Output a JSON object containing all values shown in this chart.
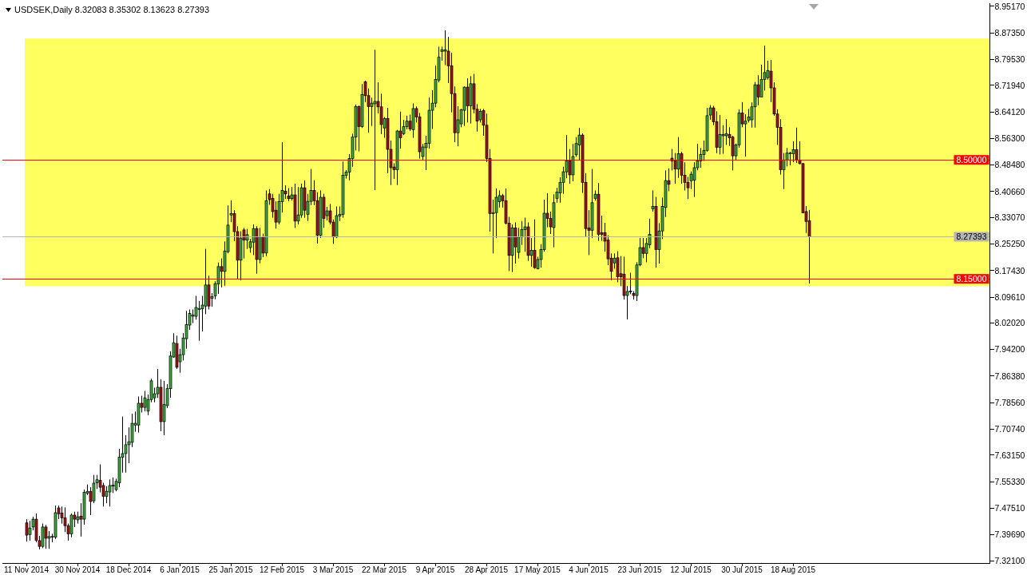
{
  "chart_data": {
    "type": "candlestick",
    "title": "USDSEK,Daily 8.32083 8.35302 8.13623 8.27393",
    "categories": [
      "11 Nov 2014",
      null,
      null,
      null,
      null,
      null,
      null,
      null,
      null,
      null,
      null,
      null,
      null,
      null,
      null,
      null,
      "30 Nov 2014",
      null,
      null,
      null,
      null,
      null,
      null,
      null,
      null,
      null,
      null,
      null,
      null,
      null,
      null,
      null,
      "18 Dec 2014",
      null,
      null,
      null,
      null,
      null,
      null,
      null,
      null,
      null,
      null,
      null,
      null,
      null,
      null,
      null,
      "6 Jan 2015",
      null,
      null,
      null,
      null,
      null,
      null,
      null,
      null,
      null,
      null,
      null,
      null,
      null,
      null,
      null,
      "25 Jan 2015",
      null,
      null,
      null,
      null,
      null,
      null,
      null,
      null,
      null,
      null,
      null,
      null,
      null,
      null,
      null,
      "12 Feb 2015",
      null,
      null,
      null,
      null,
      null,
      null,
      null,
      null,
      null,
      null,
      null,
      null,
      null,
      null,
      null,
      "3 Mar 2015",
      null,
      null,
      null,
      null,
      null,
      null,
      null,
      null,
      null,
      null,
      null,
      null,
      null,
      null,
      null,
      "22 Mar 2015",
      null,
      null,
      null,
      null,
      null,
      null,
      null,
      null,
      null,
      null,
      null,
      null,
      null,
      null,
      null,
      "9 Apr 2015",
      null,
      null,
      null,
      null,
      null,
      null,
      null,
      null,
      null,
      null,
      null,
      null,
      null,
      null,
      null,
      "28 Apr 2015",
      null,
      null,
      null,
      null,
      null,
      null,
      null,
      null,
      null,
      null,
      null,
      null,
      null,
      null,
      null,
      "17 May 2015",
      null,
      null,
      null,
      null,
      null,
      null,
      null,
      null,
      null,
      null,
      null,
      null,
      null,
      null,
      null,
      "4 Jun 2015",
      null,
      null,
      null,
      null,
      null,
      null,
      null,
      null,
      null,
      null,
      null,
      null,
      null,
      null,
      null,
      "23 Jun 2015",
      null,
      null,
      null,
      null,
      null,
      null,
      null,
      null,
      null,
      null,
      null,
      null,
      null,
      null,
      null,
      "12 Jul 2015",
      null,
      null,
      null,
      null,
      null,
      null,
      null,
      null,
      null,
      null,
      null,
      null,
      null,
      null,
      null,
      "30 Jul 2015",
      null,
      null,
      null,
      null,
      null,
      null,
      null,
      null,
      null,
      null,
      null,
      null,
      null,
      null,
      null,
      "18 Aug 2015",
      null,
      null,
      null,
      null,
      null,
      null,
      null,
      null,
      null,
      null,
      null,
      null,
      null,
      null,
      null,
      null,
      null,
      null,
      null,
      null,
      null,
      null,
      null,
      null,
      null,
      null,
      null,
      null,
      null,
      null,
      null,
      null,
      null,
      null,
      null,
      null,
      null,
      null,
      null,
      null,
      null,
      null,
      null,
      null,
      null,
      null,
      null,
      null,
      null,
      null,
      null,
      null,
      null,
      null,
      null,
      null,
      null,
      null,
      null,
      null,
      null
    ],
    "ohlc": [
      [
        7.432,
        7.443,
        7.377,
        7.396
      ],
      [
        7.398,
        7.438,
        7.38,
        7.417
      ],
      [
        7.42,
        7.45,
        7.41,
        7.443
      ],
      [
        7.443,
        7.46,
        7.375,
        7.381
      ],
      [
        7.38,
        7.394,
        7.354,
        7.363
      ],
      [
        7.363,
        7.43,
        7.358,
        7.42
      ],
      [
        7.42,
        7.426,
        7.356,
        7.387
      ],
      [
        7.387,
        7.408,
        7.356,
        7.392
      ],
      [
        7.39,
        7.4,
        7.375,
        7.392
      ],
      [
        7.39,
        7.483,
        7.385,
        7.462
      ],
      [
        7.476,
        7.483,
        7.443,
        7.459
      ],
      [
        7.461,
        7.48,
        7.43,
        7.447
      ],
      [
        7.447,
        7.478,
        7.405,
        7.424
      ],
      [
        7.424,
        7.43,
        7.38,
        7.4
      ],
      [
        7.4,
        7.46,
        7.39,
        7.455
      ],
      [
        7.455,
        7.465,
        7.42,
        7.443
      ],
      [
        7.441,
        7.465,
        7.43,
        7.45
      ],
      [
        7.452,
        7.49,
        7.392,
        7.443
      ],
      [
        7.443,
        7.53,
        7.427,
        7.522
      ],
      [
        7.52,
        7.545,
        7.514,
        7.525
      ],
      [
        7.525,
        7.537,
        7.455,
        7.495
      ],
      [
        7.497,
        7.573,
        7.49,
        7.549
      ],
      [
        7.55,
        7.573,
        7.532,
        7.559
      ],
      [
        7.557,
        7.604,
        7.522,
        7.537
      ],
      [
        7.542,
        7.55,
        7.48,
        7.51
      ],
      [
        7.51,
        7.54,
        7.49,
        7.525
      ],
      [
        7.523,
        7.56,
        7.48,
        7.542
      ],
      [
        7.54,
        7.566,
        7.52,
        7.543
      ],
      [
        7.53,
        7.562,
        7.525,
        7.554
      ],
      [
        7.55,
        7.65,
        7.537,
        7.625
      ],
      [
        7.625,
        7.745,
        7.58,
        7.636
      ],
      [
        7.636,
        7.69,
        7.58,
        7.662
      ],
      [
        7.662,
        7.713,
        7.608,
        7.671
      ],
      [
        7.669,
        7.753,
        7.655,
        7.725
      ],
      [
        7.72,
        7.76,
        7.7,
        7.725
      ],
      [
        7.72,
        7.804,
        7.698,
        7.784
      ],
      [
        7.784,
        7.806,
        7.757,
        7.772
      ],
      [
        7.772,
        7.82,
        7.76,
        7.8
      ],
      [
        7.761,
        7.81,
        7.749,
        7.795
      ],
      [
        7.795,
        7.856,
        7.787,
        7.85
      ],
      [
        7.8,
        7.83,
        7.787,
        7.812
      ],
      [
        7.812,
        7.885,
        7.8,
        7.831
      ],
      [
        7.831,
        7.854,
        7.702,
        7.73
      ],
      [
        7.73,
        7.85,
        7.69,
        7.78
      ],
      [
        7.777,
        7.84,
        7.77,
        7.827
      ],
      [
        7.827,
        7.937,
        7.8,
        7.923
      ],
      [
        7.92,
        7.99,
        7.918,
        7.962
      ],
      [
        7.96,
        7.983,
        7.885,
        7.89
      ],
      [
        7.906,
        7.944,
        7.874,
        7.927
      ],
      [
        7.927,
        7.99,
        7.91,
        7.976
      ],
      [
        7.974,
        8.056,
        7.944,
        8.015
      ],
      [
        8.014,
        8.06,
        8.0,
        8.048
      ],
      [
        8.04,
        8.06,
        8.02,
        8.044
      ],
      [
        8.04,
        8.1,
        8.03,
        8.066
      ],
      [
        8.06,
        8.085,
        7.968,
        8.063
      ],
      [
        8.062,
        8.1,
        7.995,
        8.073
      ],
      [
        8.07,
        8.238,
        8.046,
        8.132
      ],
      [
        8.132,
        8.159,
        8.06,
        8.07
      ],
      [
        8.093,
        8.108,
        8.068,
        8.098
      ],
      [
        8.1,
        8.143,
        8.09,
        8.136
      ],
      [
        8.135,
        8.198,
        8.106,
        8.186
      ],
      [
        8.186,
        8.21,
        8.125,
        8.172
      ],
      [
        8.172,
        8.26,
        8.13,
        8.232
      ],
      [
        8.23,
        8.366,
        8.225,
        8.308
      ],
      [
        8.338,
        8.381,
        8.317,
        8.342
      ],
      [
        8.342,
        8.352,
        8.261,
        8.289
      ],
      [
        8.289,
        8.305,
        8.148,
        8.205
      ],
      [
        8.205,
        8.29,
        8.146,
        8.27
      ],
      [
        8.294,
        8.3,
        8.21,
        8.264
      ],
      [
        8.264,
        8.297,
        8.238,
        8.28
      ],
      [
        8.242,
        8.268,
        8.227,
        8.259
      ],
      [
        8.258,
        8.31,
        8.22,
        8.298
      ],
      [
        8.298,
        8.305,
        8.165,
        8.207
      ],
      [
        8.207,
        8.3,
        8.196,
        8.274
      ],
      [
        8.274,
        8.283,
        8.214,
        8.226
      ],
      [
        8.226,
        8.41,
        8.217,
        8.38
      ],
      [
        8.4,
        8.414,
        8.368,
        8.383
      ],
      [
        8.387,
        8.4,
        8.33,
        8.348
      ],
      [
        8.352,
        8.378,
        8.298,
        8.317
      ],
      [
        8.317,
        8.4,
        8.31,
        8.377
      ],
      [
        8.377,
        8.552,
        8.345,
        8.41
      ],
      [
        8.408,
        8.425,
        8.385,
        8.4
      ],
      [
        8.394,
        8.417,
        8.378,
        8.386
      ],
      [
        8.386,
        8.42,
        8.38,
        8.397
      ],
      [
        8.397,
        8.43,
        8.3,
        8.32
      ],
      [
        8.32,
        8.42,
        8.31,
        8.338
      ],
      [
        8.338,
        8.43,
        8.33,
        8.418
      ],
      [
        8.418,
        8.44,
        8.33,
        8.352
      ],
      [
        8.34,
        8.4,
        8.32,
        8.378
      ],
      [
        8.378,
        8.473,
        8.367,
        8.41
      ],
      [
        8.41,
        8.44,
        8.367,
        8.38
      ],
      [
        8.38,
        8.405,
        8.254,
        8.278
      ],
      [
        8.278,
        8.41,
        8.27,
        8.39
      ],
      [
        8.39,
        8.4,
        8.3,
        8.328
      ],
      [
        8.336,
        8.362,
        8.322,
        8.35
      ],
      [
        8.35,
        8.37,
        8.31,
        8.317
      ],
      [
        8.317,
        8.325,
        8.253,
        8.273
      ],
      [
        8.273,
        8.363,
        8.27,
        8.336
      ],
      [
        8.335,
        8.363,
        8.32,
        8.34
      ],
      [
        8.34,
        8.495,
        8.33,
        8.455
      ],
      [
        8.455,
        8.47,
        8.445,
        8.464
      ],
      [
        8.464,
        8.517,
        8.44,
        8.504
      ],
      [
        8.504,
        8.577,
        8.48,
        8.567
      ],
      [
        8.567,
        8.663,
        8.528,
        8.657
      ],
      [
        8.657,
        8.66,
        8.525,
        8.598
      ],
      [
        8.598,
        8.723,
        8.594,
        8.692
      ],
      [
        8.73,
        8.733,
        8.67,
        8.689
      ],
      [
        8.689,
        8.71,
        8.58,
        8.657
      ],
      [
        8.657,
        8.683,
        8.6,
        8.667
      ],
      [
        8.665,
        8.824,
        8.411,
        8.672
      ],
      [
        8.672,
        8.728,
        8.637,
        8.656
      ],
      [
        8.656,
        8.695,
        8.576,
        8.604
      ],
      [
        8.594,
        8.626,
        8.565,
        8.622
      ],
      [
        8.622,
        8.653,
        8.461,
        8.531
      ],
      [
        8.531,
        8.557,
        8.426,
        8.477
      ],
      [
        8.479,
        8.49,
        8.444,
        8.471
      ],
      [
        8.471,
        8.588,
        8.426,
        8.585
      ],
      [
        8.585,
        8.642,
        8.533,
        8.565
      ],
      [
        8.577,
        8.618,
        8.573,
        8.598
      ],
      [
        8.598,
        8.63,
        8.59,
        8.614
      ],
      [
        8.614,
        8.633,
        8.585,
        8.591
      ],
      [
        8.589,
        8.666,
        8.565,
        8.651
      ],
      [
        8.651,
        8.657,
        8.61,
        8.626
      ],
      [
        8.626,
        8.638,
        8.504,
        8.524
      ],
      [
        8.51,
        8.547,
        8.5,
        8.538
      ],
      [
        8.536,
        8.571,
        8.47,
        8.549
      ],
      [
        8.549,
        8.683,
        8.533,
        8.646
      ],
      [
        8.646,
        8.705,
        8.591,
        8.667
      ],
      [
        8.667,
        8.777,
        8.655,
        8.737
      ],
      [
        8.735,
        8.833,
        8.728,
        8.802
      ],
      [
        8.819,
        8.833,
        8.792,
        8.824
      ],
      [
        8.82,
        8.881,
        8.779,
        8.824
      ],
      [
        8.82,
        8.862,
        8.726,
        8.777
      ],
      [
        8.777,
        8.815,
        8.64,
        8.695
      ],
      [
        8.695,
        8.716,
        8.552,
        8.58
      ],
      [
        8.58,
        8.658,
        8.54,
        8.618
      ],
      [
        8.606,
        8.65,
        8.596,
        8.648
      ],
      [
        8.646,
        8.716,
        8.6,
        8.714
      ],
      [
        8.714,
        8.74,
        8.61,
        8.659
      ],
      [
        8.659,
        8.746,
        8.607,
        8.724
      ],
      [
        8.724,
        8.753,
        8.637,
        8.649
      ],
      [
        8.649,
        8.664,
        8.583,
        8.614
      ],
      [
        8.618,
        8.65,
        8.61,
        8.643
      ],
      [
        8.645,
        8.65,
        8.571,
        8.602
      ],
      [
        8.602,
        8.636,
        8.494,
        8.504
      ],
      [
        8.504,
        8.532,
        8.289,
        8.342
      ],
      [
        8.342,
        8.383,
        8.225,
        8.345
      ],
      [
        8.345,
        8.416,
        8.27,
        8.39
      ],
      [
        8.377,
        8.41,
        8.36,
        8.395
      ],
      [
        8.395,
        8.4,
        8.36,
        8.38
      ],
      [
        8.38,
        8.416,
        8.31,
        8.314
      ],
      [
        8.314,
        8.332,
        8.173,
        8.219
      ],
      [
        8.219,
        8.31,
        8.17,
        8.3
      ],
      [
        8.3,
        8.316,
        8.195,
        8.244
      ],
      [
        8.228,
        8.3,
        8.21,
        8.273
      ],
      [
        8.273,
        8.32,
        8.25,
        8.295
      ],
      [
        8.295,
        8.33,
        8.23,
        8.303
      ],
      [
        8.303,
        8.316,
        8.203,
        8.219
      ],
      [
        8.219,
        8.27,
        8.186,
        8.234
      ],
      [
        8.234,
        8.325,
        8.18,
        8.183
      ],
      [
        8.18,
        8.215,
        8.178,
        8.207
      ],
      [
        8.207,
        8.252,
        8.183,
        8.236
      ],
      [
        8.236,
        8.383,
        8.23,
        8.343
      ],
      [
        8.343,
        8.402,
        8.302,
        8.328
      ],
      [
        8.328,
        8.348,
        8.282,
        8.303
      ],
      [
        8.301,
        8.399,
        8.243,
        8.374
      ],
      [
        8.387,
        8.418,
        8.374,
        8.405
      ],
      [
        8.403,
        8.449,
        8.374,
        8.434
      ],
      [
        8.434,
        8.48,
        8.4,
        8.465
      ],
      [
        8.465,
        8.573,
        8.446,
        8.497
      ],
      [
        8.497,
        8.532,
        8.43,
        8.456
      ],
      [
        8.456,
        8.547,
        8.437,
        8.51
      ],
      [
        8.515,
        8.567,
        8.509,
        8.548
      ],
      [
        8.544,
        8.594,
        8.5,
        8.573
      ],
      [
        8.573,
        8.578,
        8.403,
        8.434
      ],
      [
        8.434,
        8.461,
        8.273,
        8.298
      ],
      [
        8.3,
        8.352,
        8.22,
        8.293
      ],
      [
        8.293,
        8.473,
        8.27,
        8.374
      ],
      [
        8.387,
        8.41,
        8.38,
        8.399
      ],
      [
        8.399,
        8.432,
        8.262,
        8.281
      ],
      [
        8.286,
        8.336,
        8.262,
        8.281
      ],
      [
        8.286,
        8.315,
        8.23,
        8.261
      ],
      [
        8.264,
        8.278,
        8.19,
        8.209
      ],
      [
        8.211,
        8.225,
        8.146,
        8.172
      ],
      [
        8.197,
        8.225,
        8.18,
        8.211
      ],
      [
        8.212,
        8.231,
        8.14,
        8.156
      ],
      [
        8.165,
        8.217,
        8.129,
        8.156
      ],
      [
        8.164,
        8.215,
        8.089,
        8.101
      ],
      [
        8.101,
        8.129,
        8.031,
        8.113
      ],
      [
        8.112,
        8.168,
        8.105,
        8.114
      ],
      [
        8.107,
        8.114,
        8.089,
        8.101
      ],
      [
        8.101,
        8.199,
        8.085,
        8.191
      ],
      [
        8.191,
        8.27,
        8.187,
        8.242
      ],
      [
        8.242,
        8.27,
        8.211,
        8.225
      ],
      [
        8.225,
        8.27,
        8.199,
        8.254
      ],
      [
        8.25,
        8.327,
        8.24,
        8.281
      ],
      [
        8.356,
        8.41,
        8.348,
        8.363
      ],
      [
        8.363,
        8.391,
        8.183,
        8.236
      ],
      [
        8.236,
        8.314,
        8.195,
        8.291
      ],
      [
        8.291,
        8.389,
        8.267,
        8.363
      ],
      [
        8.36,
        8.469,
        8.332,
        8.439
      ],
      [
        8.439,
        8.475,
        8.408,
        8.428
      ],
      [
        8.505,
        8.532,
        8.469,
        8.497
      ],
      [
        8.497,
        8.52,
        8.43,
        8.473
      ],
      [
        8.473,
        8.567,
        8.447,
        8.518
      ],
      [
        8.518,
        8.524,
        8.43,
        8.455
      ],
      [
        8.455,
        8.493,
        8.41,
        8.434
      ],
      [
        8.434,
        8.45,
        8.385,
        8.418
      ],
      [
        8.438,
        8.466,
        8.414,
        8.458
      ],
      [
        8.44,
        8.493,
        8.391,
        8.477
      ],
      [
        8.477,
        8.547,
        8.469,
        8.497
      ],
      [
        8.497,
        8.535,
        8.477,
        8.516
      ],
      [
        8.516,
        8.557,
        8.497,
        8.528
      ],
      [
        8.528,
        8.653,
        8.524,
        8.63
      ],
      [
        8.632,
        8.661,
        8.618,
        8.653
      ],
      [
        8.653,
        8.659,
        8.602,
        8.612
      ],
      [
        8.612,
        8.643,
        8.52,
        8.537
      ],
      [
        8.537,
        8.632,
        8.516,
        8.575
      ],
      [
        8.571,
        8.602,
        8.518,
        8.575
      ],
      [
        8.571,
        8.62,
        8.544,
        8.577
      ],
      [
        8.575,
        8.596,
        8.541,
        8.565
      ],
      [
        8.567,
        8.571,
        8.469,
        8.512
      ],
      [
        8.512,
        8.548,
        8.5,
        8.544
      ],
      [
        8.544,
        8.648,
        8.536,
        8.638
      ],
      [
        8.638,
        8.67,
        8.596,
        8.606
      ],
      [
        8.606,
        8.634,
        8.51,
        8.614
      ],
      [
        8.617,
        8.65,
        8.61,
        8.626
      ],
      [
        8.618,
        8.669,
        8.595,
        8.656
      ],
      [
        8.656,
        8.729,
        8.595,
        8.721
      ],
      [
        8.721,
        8.749,
        8.661,
        8.685
      ],
      [
        8.685,
        8.78,
        8.685,
        8.737
      ],
      [
        8.737,
        8.836,
        8.704,
        8.757
      ],
      [
        8.742,
        8.792,
        8.736,
        8.763
      ],
      [
        8.761,
        8.794,
        8.67,
        8.712
      ],
      [
        8.712,
        8.728,
        8.63,
        8.635
      ],
      [
        8.635,
        8.649,
        8.544,
        8.596
      ],
      [
        8.596,
        8.62,
        8.457,
        8.471
      ],
      [
        8.471,
        8.52,
        8.414,
        8.5
      ],
      [
        8.5,
        8.535,
        8.481,
        8.52
      ],
      [
        8.518,
        8.524,
        8.484,
        8.52
      ],
      [
        8.518,
        8.555,
        8.493,
        8.53
      ],
      [
        8.53,
        8.595,
        8.491,
        8.5
      ],
      [
        8.5,
        8.555,
        8.487,
        8.489
      ],
      [
        8.489,
        8.491,
        8.343,
        8.344
      ],
      [
        8.348,
        8.364,
        8.285,
        8.319
      ],
      [
        8.32083,
        8.35302,
        8.13623,
        8.27393
      ],
      null,
      null,
      null,
      null,
      null,
      null,
      null,
      null,
      null,
      null,
      null,
      null,
      null,
      null,
      null,
      null,
      null,
      null,
      null,
      null,
      null,
      null,
      null,
      null,
      null,
      null,
      null,
      null,
      null,
      null,
      null,
      null,
      null,
      null,
      null,
      null,
      null,
      null,
      null,
      null,
      null,
      null,
      null,
      null,
      null,
      null,
      null,
      null,
      null,
      null,
      null,
      null,
      null,
      null,
      null,
      null
    ],
    "colors": [
      "#a01414",
      "#3caa3c",
      "#3caa3c",
      "#a01414",
      "#a01414",
      "#3caa3c",
      "#a01414",
      "#3caa3c",
      "#3caa3c",
      "#3caa3c",
      "#a01414",
      "#a01414",
      "#a01414",
      "#a01414",
      "#3caa3c",
      "#a01414",
      "#3caa3c",
      "#a01414",
      "#3caa3c",
      "#3caa3c",
      "#a01414",
      "#3caa3c",
      "#3caa3c",
      "#a01414",
      "#a01414",
      "#3caa3c",
      "#3caa3c",
      "#3caa3c",
      "#3caa3c",
      "#3caa3c",
      "#3caa3c",
      "#3caa3c",
      "#3caa3c",
      "#3caa3c",
      "#3caa3c",
      "#3caa3c",
      "#a01414",
      "#3caa3c",
      "#3caa3c",
      "#3caa3c",
      "#3caa3c",
      "#3caa3c",
      "#a01414",
      "#3caa3c",
      "#3caa3c",
      "#3caa3c",
      "#3caa3c",
      "#a01414",
      "#3caa3c",
      "#3caa3c",
      "#3caa3c",
      "#3caa3c",
      "#3caa3c",
      "#3caa3c",
      "#3caa3c",
      "#3caa3c",
      "#3caa3c",
      "#a01414",
      "#3caa3c",
      "#3caa3c",
      "#3caa3c",
      "#a01414",
      "#3caa3c",
      "#3caa3c",
      "#3caa3c",
      "#a01414",
      "#a01414",
      "#3caa3c",
      "#a01414",
      "#3caa3c",
      "#3caa3c",
      "#3caa3c",
      "#a01414",
      "#3caa3c",
      "#a01414",
      "#3caa3c",
      "#a01414",
      "#a01414",
      "#a01414",
      "#3caa3c",
      "#3caa3c",
      "#a01414",
      "#a01414",
      "#3caa3c",
      "#a01414",
      "#3caa3c",
      "#3caa3c",
      "#a01414",
      "#3caa3c",
      "#3caa3c",
      "#a01414",
      "#a01414",
      "#3caa3c",
      "#a01414",
      "#3caa3c",
      "#a01414",
      "#a01414",
      "#3caa3c",
      "#3caa3c",
      "#3caa3c",
      "#3caa3c",
      "#3caa3c",
      "#3caa3c",
      "#3caa3c",
      "#a01414",
      "#3caa3c",
      "#a01414",
      "#a01414",
      "#3caa3c",
      "#3caa3c",
      "#a01414",
      "#a01414",
      "#3caa3c",
      "#a01414",
      "#a01414",
      "#a01414",
      "#3caa3c",
      "#a01414",
      "#3caa3c",
      "#3caa3c",
      "#a01414",
      "#3caa3c",
      "#a01414",
      "#a01414",
      "#3caa3c",
      "#3caa3c",
      "#3caa3c",
      "#3caa3c",
      "#3caa3c",
      "#3caa3c",
      "#3caa3c",
      "#3caa3c",
      "#a01414",
      "#a01414",
      "#a01414",
      "#3caa3c",
      "#3caa3c",
      "#3caa3c",
      "#a01414",
      "#3caa3c",
      "#a01414",
      "#a01414",
      "#3caa3c",
      "#a01414",
      "#a01414",
      "#a01414",
      "#3caa3c",
      "#3caa3c",
      "#3caa3c",
      "#a01414",
      "#a01414",
      "#a01414",
      "#3caa3c",
      "#a01414",
      "#3caa3c",
      "#3caa3c",
      "#3caa3c",
      "#a01414",
      "#3caa3c",
      "#a01414",
      "#3caa3c",
      "#3caa3c",
      "#3caa3c",
      "#a01414",
      "#a01414",
      "#3caa3c",
      "#3caa3c",
      "#3caa3c",
      "#3caa3c",
      "#3caa3c",
      "#a01414",
      "#3caa3c",
      "#3caa3c",
      "#3caa3c",
      "#a01414",
      "#a01414",
      "#a01414",
      "#3caa3c",
      "#3caa3c",
      "#a01414",
      "#a01414",
      "#a01414",
      "#a01414",
      "#a01414",
      "#3caa3c",
      "#a01414",
      "#a01414",
      "#a01414",
      "#3caa3c",
      "#3caa3c",
      "#a01414",
      "#3caa3c",
      "#3caa3c",
      "#a01414",
      "#3caa3c",
      "#3caa3c",
      "#3caa3c",
      "#a01414",
      "#3caa3c",
      "#3caa3c",
      "#3caa3c",
      "#a01414",
      "#a01414",
      "#a01414",
      "#3caa3c",
      "#a01414",
      "#a01414",
      "#a01414",
      "#3caa3c",
      "#3caa3c",
      "#3caa3c",
      "#3caa3c",
      "#3caa3c",
      "#3caa3c",
      "#3caa3c",
      "#a01414",
      "#a01414",
      "#3caa3c",
      "#3caa3c",
      "#3caa3c",
      "#a01414",
      "#a01414",
      "#3caa3c",
      "#3caa3c",
      "#a01414",
      "#3caa3c",
      "#3caa3c",
      "#3caa3c",
      "#3caa3c",
      "#a01414",
      "#3caa3c",
      "#3caa3c",
      "#3caa3c",
      "#a01414",
      "#a01414",
      "#a01414",
      "#a01414",
      "#3caa3c",
      "#3caa3c",
      "#3caa3c",
      "#3caa3c",
      "#a01414",
      "#a01414",
      "#a01414",
      "#a01414",
      "#a01414",
      null,
      null,
      null,
      null,
      null,
      null,
      null,
      null,
      null,
      null,
      null,
      null,
      null,
      null,
      null,
      null,
      null,
      null,
      null,
      null,
      null,
      null,
      null,
      null,
      null,
      null,
      null,
      null,
      null,
      null,
      null,
      null,
      null,
      null,
      null,
      null,
      null,
      null,
      null,
      null,
      null,
      null,
      null,
      null,
      null,
      null,
      null,
      null,
      null,
      null,
      null,
      null,
      null,
      null,
      null,
      null
    ],
    "ylim": [
      7.314,
      8.961
    ],
    "yticks": [
      {
        "value": 8.9517,
        "label": "8.95170"
      },
      {
        "value": 8.8735,
        "label": "8.87350"
      },
      {
        "value": 8.7953,
        "label": "8.79530"
      },
      {
        "value": 8.7194,
        "label": "8.71940"
      },
      {
        "value": 8.6412,
        "label": "8.64120"
      },
      {
        "value": 8.563,
        "label": "8.56300"
      },
      {
        "value": 8.4848,
        "label": "8.48480"
      },
      {
        "value": 8.4066,
        "label": "8.40660"
      },
      {
        "value": 8.3307,
        "label": "8.33070"
      },
      {
        "value": 8.2525,
        "label": "8.25250"
      },
      {
        "value": 8.1743,
        "label": "8.17430"
      },
      {
        "value": 8.0961,
        "label": "8.09610"
      },
      {
        "value": 8.0202,
        "label": "8.02020"
      },
      {
        "value": 7.942,
        "label": "7.94200"
      },
      {
        "value": 7.8638,
        "label": "7.86380"
      },
      {
        "value": 7.7856,
        "label": "7.78560"
      },
      {
        "value": 7.7074,
        "label": "7.70740"
      },
      {
        "value": 7.6315,
        "label": "7.63150"
      },
      {
        "value": 7.5533,
        "label": "7.55330"
      },
      {
        "value": 7.4751,
        "label": "7.47510"
      },
      {
        "value": 7.3969,
        "label": "7.39690"
      },
      {
        "value": 7.321,
        "label": "7.32100"
      }
    ],
    "ref_lines": [
      {
        "axis": "y",
        "value": 8.5,
        "label": "8.50000",
        "color": "#ff0000"
      },
      {
        "axis": "y",
        "value": 8.27393,
        "label": "8.27393",
        "color": "#b4b4b4"
      },
      {
        "axis": "y",
        "value": 8.15,
        "label": "8.15000",
        "color": "#ff0000"
      }
    ],
    "bands": [
      {
        "axis": "y",
        "from": 8.128,
        "to": 8.857,
        "color": "#ffff60"
      }
    ]
  }
}
